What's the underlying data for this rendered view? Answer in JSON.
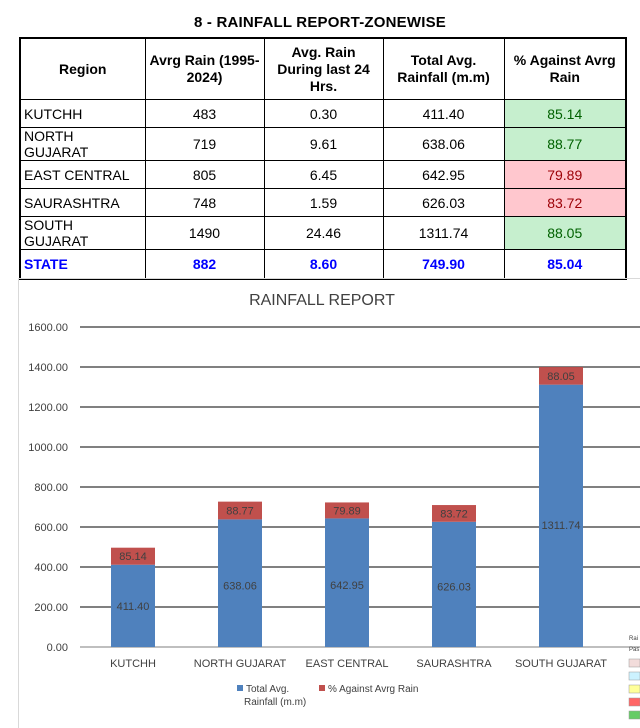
{
  "report": {
    "title": "8 - RAINFALL REPORT-ZONEWISE"
  },
  "table": {
    "headers": {
      "region": "Region",
      "avg_rain": "Avrg Rain (1995-2024)",
      "last24": "Avg. Rain During last 24 Hrs.",
      "total": "Total Avg. Rainfall (m.m)",
      "pct": "% Against Avrg Rain"
    },
    "rows": [
      {
        "region": "KUTCHH",
        "avg_rain": "483",
        "last24": "0.30",
        "total": "411.40",
        "pct": "85.14",
        "pct_color": "#c6efce",
        "pct_text": "#006100"
      },
      {
        "region": "NORTH GUJARAT",
        "avg_rain": "719",
        "last24": "9.61",
        "total": "638.06",
        "pct": "88.77",
        "pct_color": "#c6efce",
        "pct_text": "#006100"
      },
      {
        "region": "EAST CENTRAL",
        "avg_rain": "805",
        "last24": "6.45",
        "total": "642.95",
        "pct": "79.89",
        "pct_color": "#ffc7ce",
        "pct_text": "#9c0006"
      },
      {
        "region": "SAURASHTRA",
        "avg_rain": "748",
        "last24": "1.59",
        "total": "626.03",
        "pct": "83.72",
        "pct_color": "#ffc7ce",
        "pct_text": "#9c0006"
      },
      {
        "region": "SOUTH GUJARAT",
        "avg_rain": "1490",
        "last24": "24.46",
        "total": "1311.74",
        "pct": "88.05",
        "pct_color": "#c6efce",
        "pct_text": "#006100"
      }
    ],
    "state": {
      "region": "STATE",
      "avg_rain": "882",
      "last24": "8.60",
      "total": "749.90",
      "pct": "85.04"
    }
  },
  "chart_data": {
    "type": "bar",
    "stacked": true,
    "title": "RAINFALL REPORT",
    "categories": [
      "KUTCHH",
      "NORTH GUJARAT",
      "EAST CENTRAL",
      "SAURASHTRA",
      "SOUTH GUJARAT"
    ],
    "series": [
      {
        "name": "Total Avg. Rainfall (m.m)",
        "values": [
          411.4,
          638.06,
          642.95,
          626.03,
          1311.74
        ],
        "color": "#4f81bd"
      },
      {
        "name": "% Against Avrg Rain",
        "values": [
          85.14,
          88.77,
          79.89,
          83.72,
          88.05
        ],
        "color": "#c0504d"
      }
    ],
    "ylim": [
      0,
      1600
    ],
    "yticks": [
      "0.00",
      "200.00",
      "400.00",
      "600.00",
      "800.00",
      "1000.00",
      "1200.00",
      "1400.00",
      "1600.00"
    ],
    "grid": true,
    "legend": "bottom"
  },
  "side_legend": {
    "labels": [
      "Rai",
      "Pas"
    ],
    "swatches": [
      "#f2dcdb",
      "#ccf2ff",
      "#ffff99",
      "#ff6666",
      "#66cc66"
    ]
  }
}
